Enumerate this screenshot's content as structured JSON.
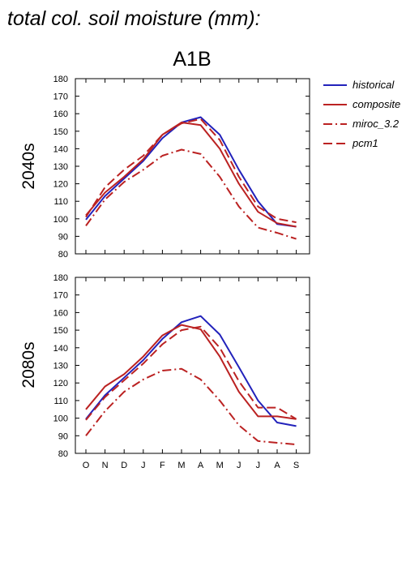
{
  "figure_title": "total col. soil moisture (mm):",
  "scenario": "A1B",
  "colors": {
    "historical": "#2222bb",
    "projection": "#bb2222"
  },
  "chart_data": [
    {
      "type": "line",
      "panel_label": "2040s",
      "categories": [
        "O",
        "N",
        "D",
        "J",
        "F",
        "M",
        "A",
        "M",
        "J",
        "J",
        "A",
        "S"
      ],
      "ylim": [
        80,
        180
      ],
      "yticks": [
        80,
        90,
        100,
        110,
        120,
        130,
        140,
        150,
        160,
        170,
        180
      ],
      "grid": false,
      "legend_position": "right",
      "series": [
        {
          "name": "historical",
          "style": "solid",
          "color": "#2222bb",
          "values": [
            99.5,
            113,
            123,
            133,
            146,
            155,
            158,
            148,
            128,
            110,
            97,
            95.5
          ]
        },
        {
          "name": "composite",
          "style": "solid",
          "color": "#bb2222",
          "values": [
            102,
            115,
            124,
            134,
            148,
            155,
            153.5,
            140,
            120,
            104,
            97.5,
            95.5
          ]
        },
        {
          "name": "miroc_3.2",
          "style": "dashdot",
          "color": "#bb2222",
          "values": [
            96,
            111,
            121,
            128,
            136,
            139.5,
            137,
            124,
            107,
            95,
            92,
            88.5
          ]
        },
        {
          "name": "pcm1",
          "style": "dashed",
          "color": "#bb2222",
          "values": [
            101,
            118,
            128,
            136,
            148,
            154.5,
            157,
            145,
            124,
            107,
            100,
            98
          ]
        }
      ]
    },
    {
      "type": "line",
      "panel_label": "2080s",
      "categories": [
        "O",
        "N",
        "D",
        "J",
        "F",
        "M",
        "A",
        "M",
        "J",
        "J",
        "A",
        "S"
      ],
      "ylim": [
        80,
        180
      ],
      "yticks": [
        80,
        90,
        100,
        110,
        120,
        130,
        140,
        150,
        160,
        170,
        180
      ],
      "grid": false,
      "legend_position": "right",
      "series": [
        {
          "name": "historical",
          "style": "solid",
          "color": "#2222bb",
          "values": [
            99.5,
            113,
            123,
            133,
            145,
            154.5,
            158,
            147.5,
            129,
            110,
            97.5,
            95.5
          ]
        },
        {
          "name": "composite",
          "style": "solid",
          "color": "#bb2222",
          "values": [
            105,
            118,
            125,
            135,
            147,
            153,
            150.5,
            135,
            115,
            101,
            101,
            99.5
          ]
        },
        {
          "name": "miroc_3.2",
          "style": "dashdot",
          "color": "#bb2222",
          "values": [
            90,
            104,
            115,
            122,
            127,
            128,
            122,
            110,
            96,
            87,
            86,
            85
          ]
        },
        {
          "name": "pcm1",
          "style": "dashed",
          "color": "#bb2222",
          "values": [
            99,
            112,
            121.5,
            131,
            142,
            150,
            152,
            140,
            121,
            106,
            106,
            99.5
          ]
        }
      ]
    }
  ]
}
